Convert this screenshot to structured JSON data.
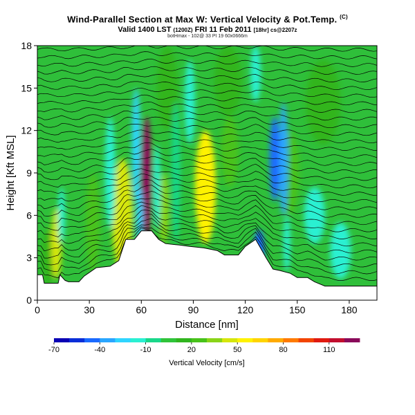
{
  "header": {
    "title": "Wind-Parallel Section at Max W: Vertical Velocity & Pot.Temp.",
    "title_mark": "(C)",
    "valid_line": "Valid 1400 LST",
    "valid_utc": "(1200Z)",
    "valid_date": "FRI 11 Feb 2011",
    "valid_run": "[18hr] cs@2207z",
    "sub_line": "botHmax - 102@ 33 PI 19 60x0666m"
  },
  "chart_data": {
    "type": "heatmap",
    "xlabel": "Distance [nm]",
    "ylabel": "Height [Kft MSL]",
    "xlim": [
      0,
      196
    ],
    "ylim": [
      0,
      18
    ],
    "xticks": [
      "0",
      "30",
      "60",
      "90",
      "120",
      "150",
      "180"
    ],
    "yticks": [
      "0",
      "3",
      "6",
      "9",
      "12",
      "15",
      "18"
    ],
    "colorbar": {
      "label": "Vertical Velocity [cm/s]",
      "tick_labels": [
        "-70",
        "-40",
        "-10",
        "20",
        "50",
        "80",
        "110"
      ],
      "colors": [
        "#0a00b4",
        "#0a2ed8",
        "#1a6aff",
        "#2aa6ff",
        "#2fd5ff",
        "#2af0d2",
        "#19d78a",
        "#2fc43a",
        "#30b51e",
        "#48c21a",
        "#8ad418",
        "#d6e60c",
        "#fff200",
        "#ffd400",
        "#ffaa00",
        "#ff7a00",
        "#f24400",
        "#e01a10",
        "#c20e2e",
        "#8a0a5a"
      ]
    },
    "terrain_profile_kft": [
      [
        0,
        1.8
      ],
      [
        3,
        1.8
      ],
      [
        4,
        1.2
      ],
      [
        8,
        1.2
      ],
      [
        12,
        1.2
      ],
      [
        13,
        1.8
      ],
      [
        16,
        1.4
      ],
      [
        18,
        1.3
      ],
      [
        20,
        1.3
      ],
      [
        24,
        1.3
      ],
      [
        27,
        1.7
      ],
      [
        34,
        2.3
      ],
      [
        42,
        2.4
      ],
      [
        47,
        2.8
      ],
      [
        51,
        4.3
      ],
      [
        56,
        4.3
      ],
      [
        60,
        4.9
      ],
      [
        66,
        4.9
      ],
      [
        70,
        4.3
      ],
      [
        74,
        4.0
      ],
      [
        82,
        3.9
      ],
      [
        88,
        3.8
      ],
      [
        96,
        3.7
      ],
      [
        104,
        3.5
      ],
      [
        108,
        3.2
      ],
      [
        116,
        3.2
      ],
      [
        120,
        3.8
      ],
      [
        126,
        4.3
      ],
      [
        132,
        3.0
      ],
      [
        136,
        2.2
      ],
      [
        140,
        2.1
      ],
      [
        146,
        1.9
      ],
      [
        150,
        1.6
      ],
      [
        156,
        1.6
      ],
      [
        160,
        1.3
      ],
      [
        166,
        1.0
      ],
      [
        172,
        1.0
      ],
      [
        180,
        1.0
      ],
      [
        186,
        1.0
      ],
      [
        191,
        1.0
      ],
      [
        196,
        1.0
      ]
    ],
    "updraft_regions": [
      {
        "x": 6,
        "y": 3.0,
        "wx": 4,
        "hy": 2.0,
        "w": 15
      },
      {
        "x": 11,
        "y": 4.0,
        "wx": 3,
        "hy": 2.5,
        "w": 40
      },
      {
        "x": 32,
        "y": 5.5,
        "wx": 4,
        "hy": 3.5,
        "w": 25
      },
      {
        "x": 49,
        "y": 6.0,
        "wx": 6,
        "hy": 4.0,
        "w": 45
      },
      {
        "x": 63,
        "y": 8.5,
        "wx": 3,
        "hy": 4.5,
        "w": 120
      },
      {
        "x": 73,
        "y": 6.5,
        "wx": 3,
        "hy": 2.5,
        "w": 30
      },
      {
        "x": 97,
        "y": 8.0,
        "wx": 6,
        "hy": 4.0,
        "w": 55
      },
      {
        "x": 111,
        "y": 10.5,
        "wx": 5,
        "hy": 2.5,
        "w": 25
      },
      {
        "x": 145,
        "y": 9.0,
        "wx": 6,
        "hy": 3.0,
        "w": 25
      },
      {
        "x": 110,
        "y": 15.5,
        "wx": 8,
        "hy": 2.5,
        "w": 15
      },
      {
        "x": 75,
        "y": 15.0,
        "wx": 6,
        "hy": 3.0,
        "w": 15
      },
      {
        "x": 165,
        "y": 14.0,
        "wx": 10,
        "hy": 3.0,
        "w": 18
      }
    ],
    "downdraft_regions": [
      {
        "x": 14,
        "y": 6.0,
        "wx": 2,
        "hy": 2.0,
        "w": -20
      },
      {
        "x": 42,
        "y": 9.0,
        "wx": 3,
        "hy": 4.0,
        "w": -12
      },
      {
        "x": 57,
        "y": 11.0,
        "wx": 2.5,
        "hy": 4.0,
        "w": -22
      },
      {
        "x": 59,
        "y": 6.0,
        "wx": 2,
        "hy": 2.0,
        "w": -22
      },
      {
        "x": 69,
        "y": 8.0,
        "wx": 2,
        "hy": 3.0,
        "w": -15
      },
      {
        "x": 80,
        "y": 9.0,
        "wx": 2.5,
        "hy": 5.0,
        "w": -10
      },
      {
        "x": 88,
        "y": 14.0,
        "wx": 3,
        "hy": 3.0,
        "w": -12
      },
      {
        "x": 128,
        "y": 3.5,
        "wx": 3,
        "hy": 1.5,
        "w": -45
      },
      {
        "x": 137,
        "y": 10.0,
        "wx": 3,
        "hy": 3.0,
        "w": -45
      },
      {
        "x": 142,
        "y": 10.0,
        "wx": 2.5,
        "hy": 4.0,
        "w": -35
      },
      {
        "x": 144,
        "y": 4.0,
        "wx": 2,
        "hy": 2.0,
        "w": -20
      },
      {
        "x": 160,
        "y": 6.0,
        "wx": 6,
        "hy": 2.0,
        "w": -18
      },
      {
        "x": 175,
        "y": 3.5,
        "wx": 6,
        "hy": 2.0,
        "w": -12
      },
      {
        "x": 126,
        "y": 16.0,
        "wx": 3,
        "hy": 2.0,
        "w": -15
      }
    ]
  }
}
